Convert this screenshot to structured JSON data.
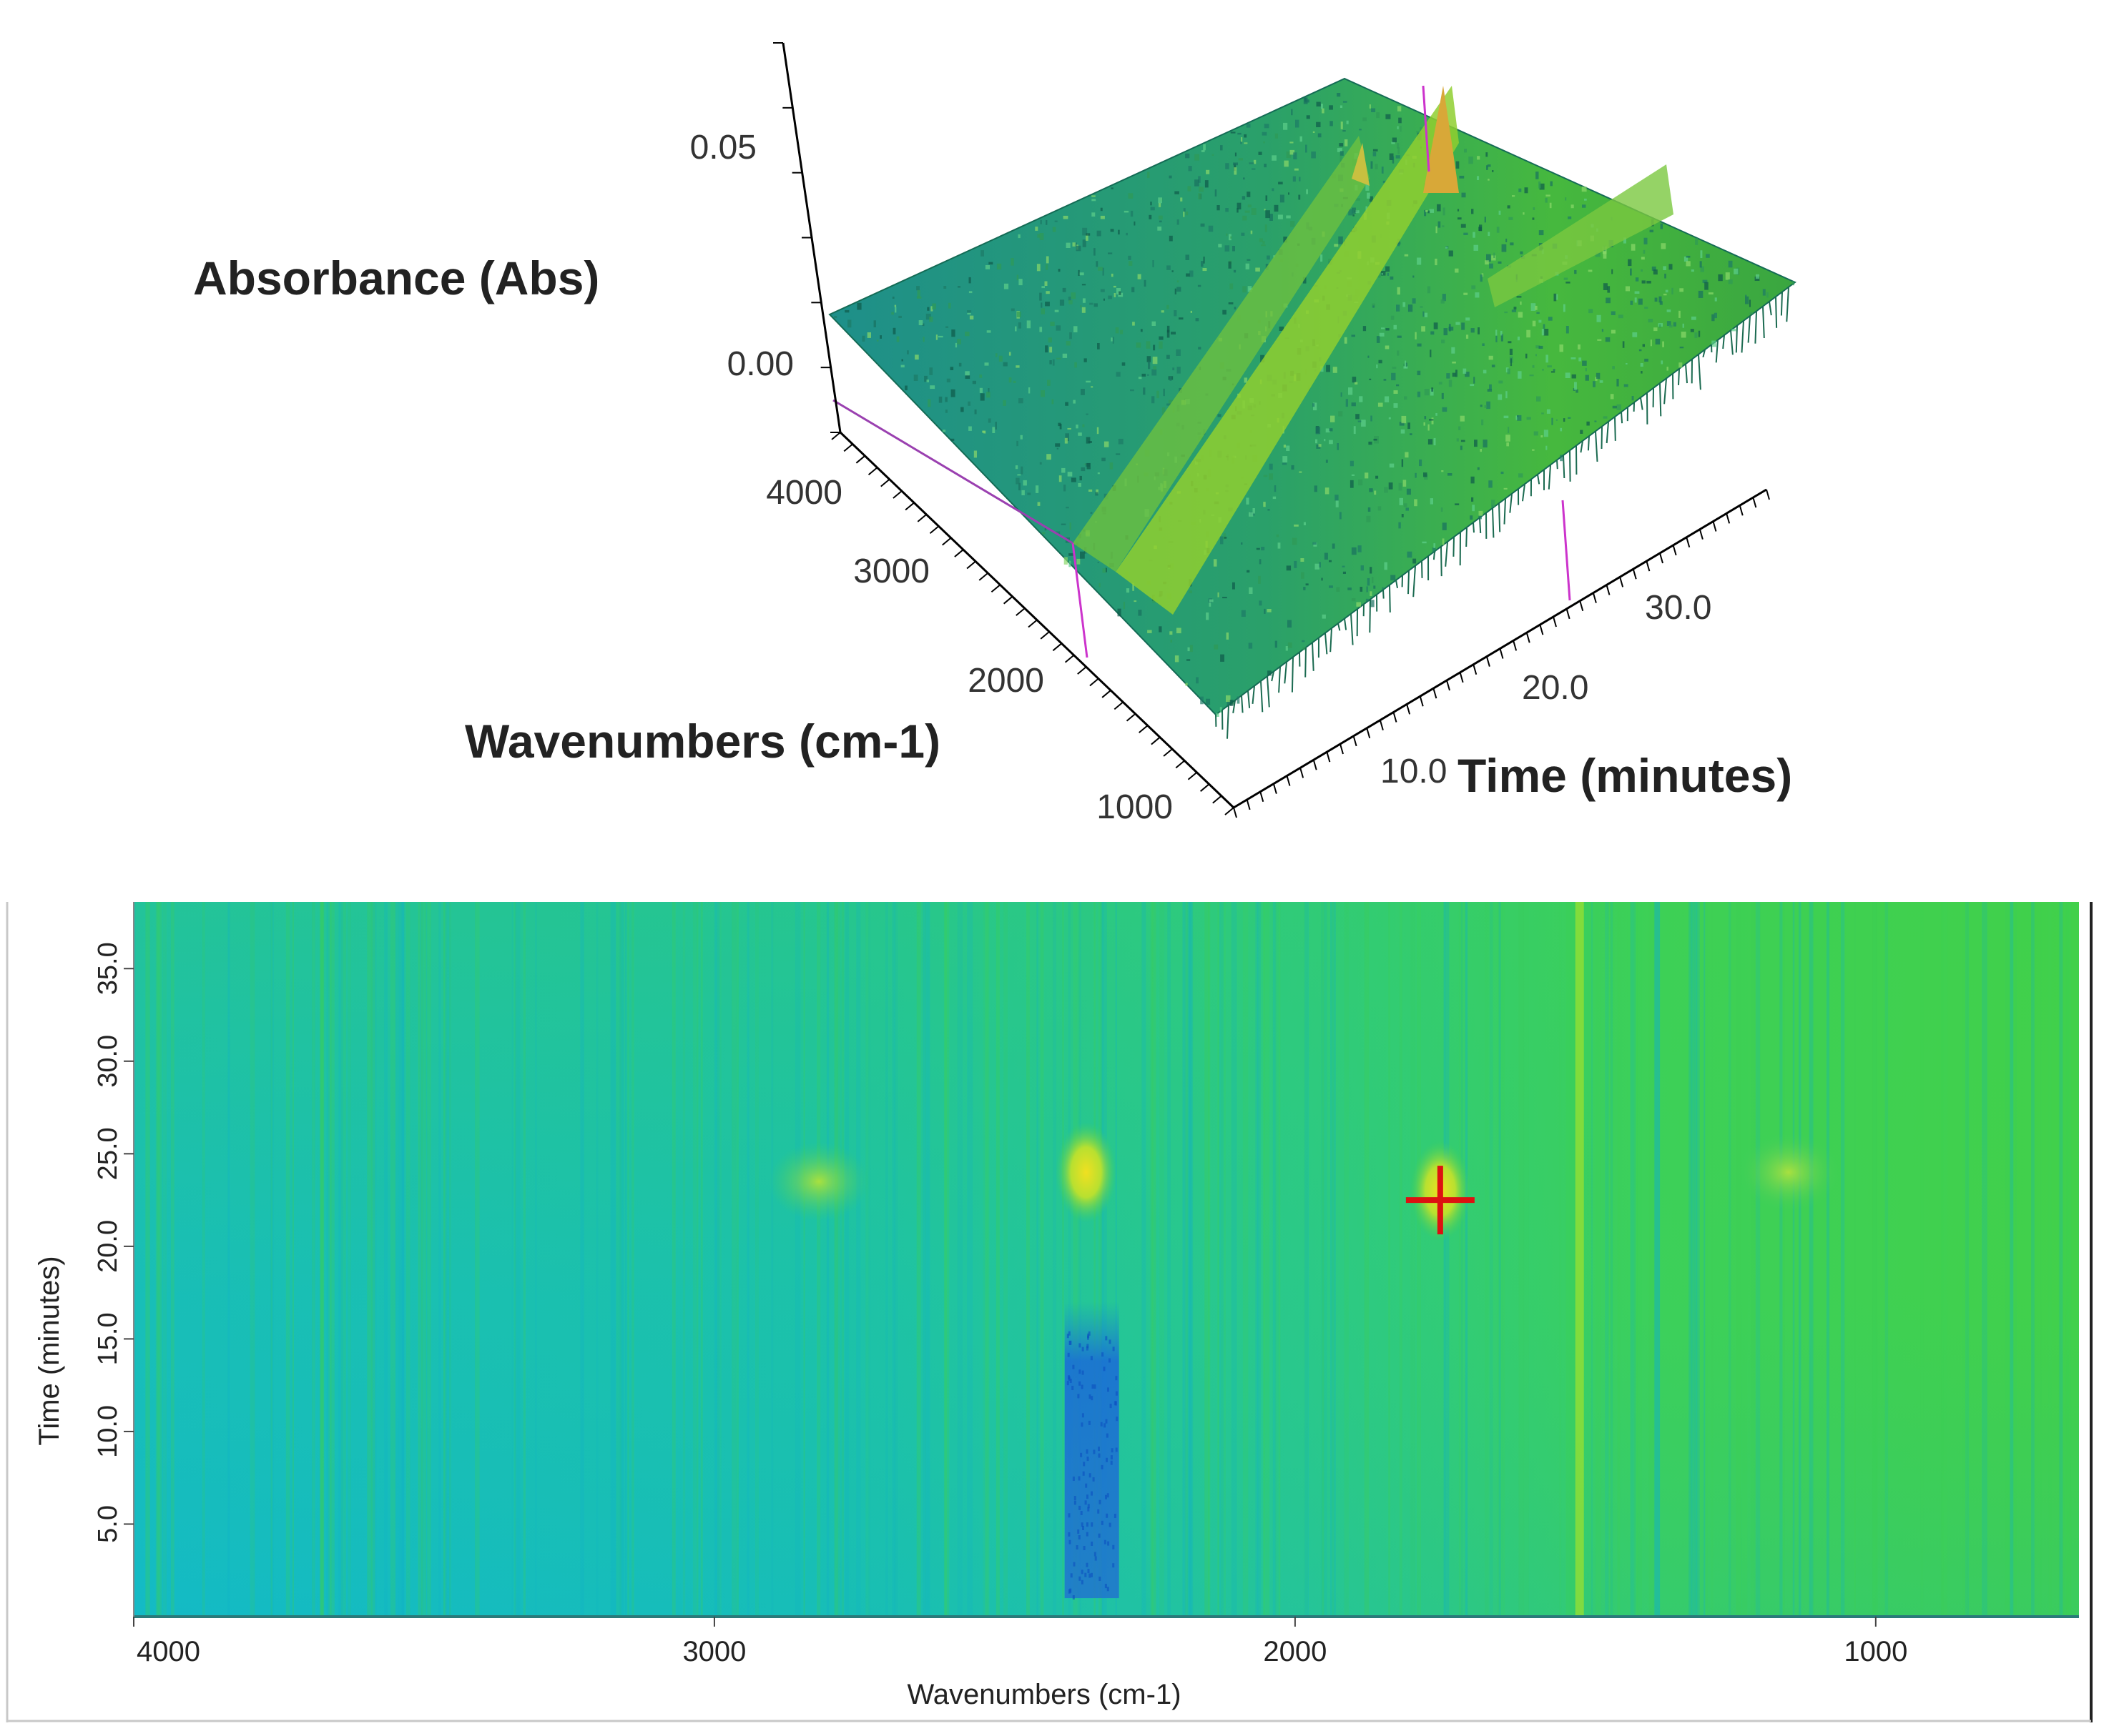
{
  "chart_data": [
    {
      "type": "surface3d",
      "zlabel": "Absorbance (Abs)",
      "xlabel": "Wavenumbers (cm-1)",
      "ylabel": "Time (minutes)",
      "z_ticks": [
        "0.05",
        "0.00"
      ],
      "x_ticks": [
        "4000",
        "3000",
        "2000",
        "1000"
      ],
      "y_ticks": [
        "10.0",
        "20.0",
        "30.0"
      ],
      "zlim": [
        0.0,
        0.06
      ],
      "xlim": [
        4000,
        800
      ],
      "ylim": [
        0,
        38
      ],
      "peaks": [
        {
          "wavenumber": 1750,
          "time": 22.5,
          "absorbance": 0.055
        },
        {
          "wavenumber": 2350,
          "time": 24.0,
          "absorbance": 0.04
        }
      ],
      "colors": {
        "surface_low": "#1a9a8a",
        "surface_mid": "#3dbd4a",
        "surface_high": "#d9b53a",
        "marker": "#cc33cc"
      }
    },
    {
      "type": "heatmap",
      "xlabel": "Wavenumbers (cm-1)",
      "ylabel": "Time (minutes)",
      "x_ticks": [
        4000,
        3000,
        2000,
        1000
      ],
      "y_ticks": [
        5.0,
        10.0,
        15.0,
        20.0,
        25.0,
        30.0,
        35.0
      ],
      "x_tick_labels": [
        "4000",
        "3000",
        "2000",
        "1000"
      ],
      "y_tick_labels": [
        "5.0",
        "10.0",
        "15.0",
        "20.0",
        "25.0",
        "30.0",
        "35.0"
      ],
      "xlim": [
        4000,
        650
      ],
      "ylim": [
        0,
        38.6
      ],
      "features": [
        {
          "label": "peak",
          "wavenumber": 2360,
          "time": 24.0
        },
        {
          "label": "peak",
          "wavenumber": 2820,
          "time": 23.5
        },
        {
          "label": "peak",
          "wavenumber": 1750,
          "time": 23.0
        },
        {
          "label": "peak",
          "wavenumber": 1150,
          "time": 24.0
        },
        {
          "label": "band",
          "wavenumber": 1510,
          "time_range": [
            0,
            38.6
          ]
        },
        {
          "label": "trough",
          "wavenumber": 2350,
          "time_range": [
            1,
            17
          ]
        }
      ],
      "cursor": {
        "wavenumber": 1750,
        "time": 22.5
      },
      "colors": {
        "low": "#10b8c8",
        "high": "#3fd24a",
        "peak": "#e8d020",
        "trough": "#1f6ad8",
        "cursor": "#dd1111"
      }
    }
  ]
}
